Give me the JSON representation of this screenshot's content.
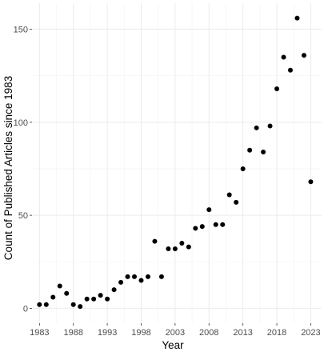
{
  "chart_data": {
    "type": "scatter",
    "title": "",
    "xlabel": "Year",
    "ylabel": "Count of Published Articles since 1983",
    "xlim": [
      1981.9,
      2024.6
    ],
    "ylim": [
      -8,
      164
    ],
    "x_ticks": [
      1983,
      1988,
      1993,
      1998,
      2003,
      2008,
      2013,
      2018,
      2023
    ],
    "y_ticks": [
      0,
      50,
      100,
      150
    ],
    "grid": true,
    "legend": "none",
    "point_color": "#000000",
    "x": [
      1983,
      1984,
      1985,
      1986,
      1987,
      1988,
      1989,
      1990,
      1991,
      1992,
      1993,
      1994,
      1995,
      1996,
      1997,
      1998,
      1999,
      2000,
      2001,
      2002,
      2003,
      2004,
      2005,
      2006,
      2007,
      2008,
      2009,
      2010,
      2011,
      2012,
      2013,
      2014,
      2015,
      2016,
      2017,
      2018,
      2019,
      2020,
      2021,
      2022,
      2023
    ],
    "y": [
      2,
      2,
      6,
      12,
      8,
      2,
      1,
      5,
      5,
      7,
      5,
      10,
      14,
      17,
      17,
      15,
      17,
      36,
      17,
      32,
      32,
      35,
      33,
      43,
      44,
      53,
      45,
      45,
      61,
      57,
      75,
      85,
      97,
      84,
      98,
      118,
      135,
      128,
      156,
      136,
      68
    ]
  }
}
